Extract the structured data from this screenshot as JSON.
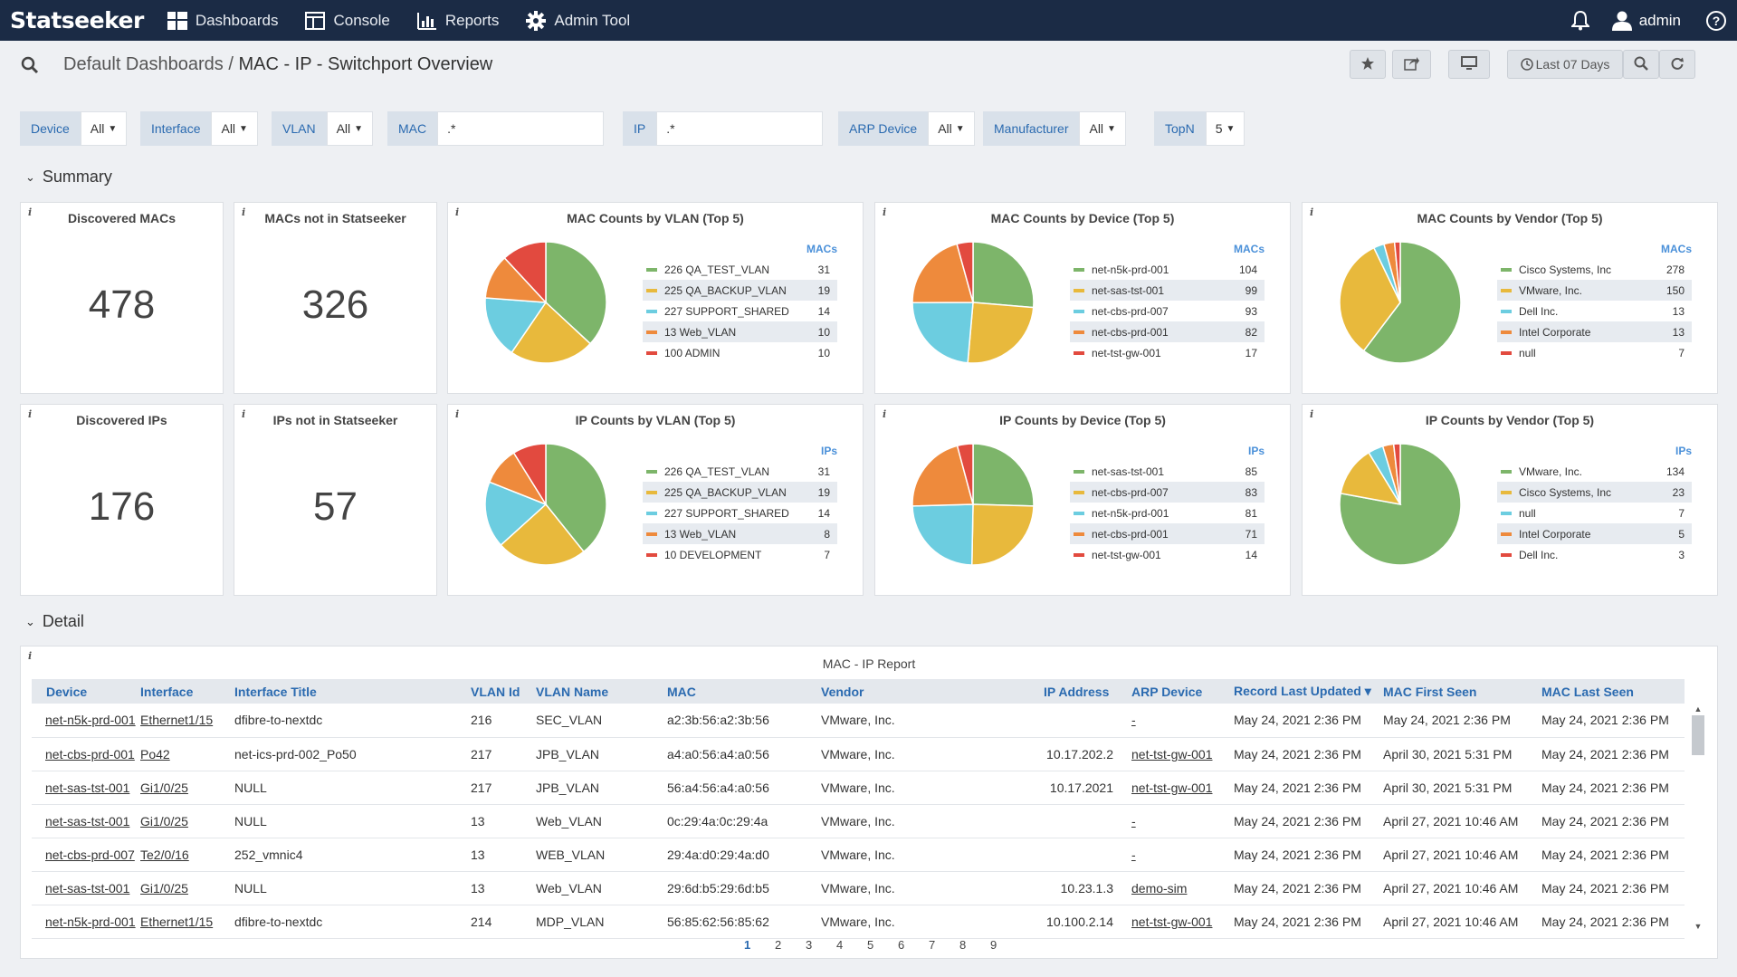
{
  "app": {
    "logo": "Statseeker",
    "nav": [
      {
        "label": "Dashboards",
        "icon": "dashboards-icon"
      },
      {
        "label": "Console",
        "icon": "console-icon"
      },
      {
        "label": "Reports",
        "icon": "reports-icon"
      },
      {
        "label": "Admin Tool",
        "icon": "gear-icon"
      }
    ],
    "user": "admin"
  },
  "header": {
    "breadcrumb_parent": "Default Dashboards",
    "separator": " / ",
    "title": "MAC - IP - Switchport Overview",
    "time_range": "Last 07 Days"
  },
  "filters": {
    "device": {
      "label": "Device",
      "value": "All"
    },
    "interface": {
      "label": "Interface",
      "value": "All"
    },
    "vlan": {
      "label": "VLAN",
      "value": "All"
    },
    "mac": {
      "label": "MAC",
      "value": ".*"
    },
    "ip": {
      "label": "IP",
      "value": ".*"
    },
    "arp_device": {
      "label": "ARP Device",
      "value": "All"
    },
    "manufacturer": {
      "label": "Manufacturer",
      "value": "All"
    },
    "topn": {
      "label": "TopN",
      "value": "5"
    }
  },
  "summary": {
    "heading": "Summary",
    "stats": {
      "discovered_macs": {
        "title": "Discovered MACs",
        "value": "478"
      },
      "macs_not_in": {
        "title": "MACs not in Statseeker",
        "value": "326"
      },
      "discovered_ips": {
        "title": "Discovered IPs",
        "value": "176"
      },
      "ips_not_in": {
        "title": "IPs not in Statseeker",
        "value": "57"
      }
    }
  },
  "colors": [
    "#7db56a",
    "#e8b93c",
    "#6ccde0",
    "#ee8a3c",
    "#e24a3f"
  ],
  "chart_data": [
    {
      "type": "pie",
      "title": "MAC Counts by VLAN (Top 5)",
      "unit": "MACs",
      "labels": [
        "226 QA_TEST_VLAN",
        "225 QA_BACKUP_VLAN",
        "227 SUPPORT_SHARED",
        "13 Web_VLAN",
        "100 ADMIN"
      ],
      "values": [
        31,
        19,
        14,
        10,
        10
      ]
    },
    {
      "type": "pie",
      "title": "MAC Counts by Device (Top 5)",
      "unit": "MACs",
      "labels": [
        "net-n5k-prd-001",
        "net-sas-tst-001",
        "net-cbs-prd-007",
        "net-cbs-prd-001",
        "net-tst-gw-001"
      ],
      "values": [
        104,
        99,
        93,
        82,
        17
      ]
    },
    {
      "type": "pie",
      "title": "MAC Counts by Vendor (Top 5)",
      "unit": "MACs",
      "labels": [
        "Cisco Systems, Inc",
        "VMware, Inc.",
        "Dell Inc.",
        "Intel Corporate",
        "null"
      ],
      "values": [
        278,
        150,
        13,
        13,
        7
      ]
    },
    {
      "type": "pie",
      "title": "IP Counts by VLAN (Top 5)",
      "unit": "IPs",
      "labels": [
        "226 QA_TEST_VLAN",
        "225 QA_BACKUP_VLAN",
        "227 SUPPORT_SHARED",
        "13 Web_VLAN",
        "10 DEVELOPMENT"
      ],
      "values": [
        31,
        19,
        14,
        8,
        7
      ]
    },
    {
      "type": "pie",
      "title": "IP Counts by Device (Top 5)",
      "unit": "IPs",
      "labels": [
        "net-sas-tst-001",
        "net-cbs-prd-007",
        "net-n5k-prd-001",
        "net-cbs-prd-001",
        "net-tst-gw-001"
      ],
      "values": [
        85,
        83,
        81,
        71,
        14
      ]
    },
    {
      "type": "pie",
      "title": "IP Counts by Vendor (Top 5)",
      "unit": "IPs",
      "labels": [
        "VMware, Inc.",
        "Cisco Systems, Inc",
        "null",
        "Intel Corporate",
        "Dell Inc."
      ],
      "values": [
        134,
        23,
        7,
        5,
        3
      ]
    }
  ],
  "detail": {
    "heading": "Detail",
    "report_title": "MAC - IP Report",
    "columns": [
      "Device",
      "Interface",
      "Interface Title",
      "VLAN Id",
      "VLAN Name",
      "MAC",
      "Vendor",
      "IP Address",
      "ARP Device",
      "Record Last Updated",
      "MAC First Seen",
      "MAC Last Seen"
    ],
    "rows": [
      [
        "net-n5k-prd-001",
        "Ethernet1/15",
        "dfibre-to-nextdc",
        "216",
        "SEC_VLAN",
        "a2:3b:56:a2:3b:56",
        "VMware, Inc.",
        "",
        "-",
        "May 24, 2021 2:36 PM",
        "May 24, 2021 2:36 PM",
        "May 24, 2021 2:36 PM"
      ],
      [
        "net-cbs-prd-001",
        "Po42",
        "net-ics-prd-002_Po50",
        "217",
        "JPB_VLAN",
        "a4:a0:56:a4:a0:56",
        "VMware, Inc.",
        "10.17.202.2",
        "net-tst-gw-001",
        "May 24, 2021 2:36 PM",
        "April 30, 2021 5:31 PM",
        "May 24, 2021 2:36 PM"
      ],
      [
        "net-sas-tst-001",
        "Gi1/0/25",
        "NULL",
        "217",
        "JPB_VLAN",
        "56:a4:56:a4:a0:56",
        "VMware, Inc.",
        "10.17.2021",
        "net-tst-gw-001",
        "May 24, 2021 2:36 PM",
        "April 30, 2021 5:31 PM",
        "May 24, 2021 2:36 PM"
      ],
      [
        "net-sas-tst-001",
        "Gi1/0/25",
        "NULL",
        "13",
        "Web_VLAN",
        "0c:29:4a:0c:29:4a",
        "VMware, Inc.",
        "",
        "-",
        "May 24, 2021 2:36 PM",
        "April 27, 2021 10:46 AM",
        "May 24, 2021 2:36 PM"
      ],
      [
        "net-cbs-prd-007",
        "Te2/0/16",
        "252_vmnic4",
        "13",
        "WEB_VLAN",
        "29:4a:d0:29:4a:d0",
        "VMware, Inc.",
        "",
        "-",
        "May 24, 2021 2:36 PM",
        "April 27, 2021 10:46 AM",
        "May 24, 2021 2:36 PM"
      ],
      [
        "net-sas-tst-001",
        "Gi1/0/25",
        "NULL",
        "13",
        "Web_VLAN",
        "29:6d:b5:29:6d:b5",
        "VMware, Inc.",
        "10.23.1.3",
        "demo-sim",
        "May 24, 2021 2:36 PM",
        "April 27, 2021 10:46 AM",
        "May 24, 2021 2:36 PM"
      ],
      [
        "net-n5k-prd-001",
        "Ethernet1/15",
        "dfibre-to-nextdc",
        "214",
        "MDP_VLAN",
        "56:85:62:56:85:62",
        "VMware, Inc.",
        "10.100.2.14",
        "net-tst-gw-001",
        "May 24, 2021 2:36 PM",
        "April 27, 2021 10:46 AM",
        "May 24, 2021 2:36 PM"
      ]
    ],
    "pages": [
      "1",
      "2",
      "3",
      "4",
      "5",
      "6",
      "7",
      "8",
      "9"
    ],
    "current_page": "1"
  }
}
